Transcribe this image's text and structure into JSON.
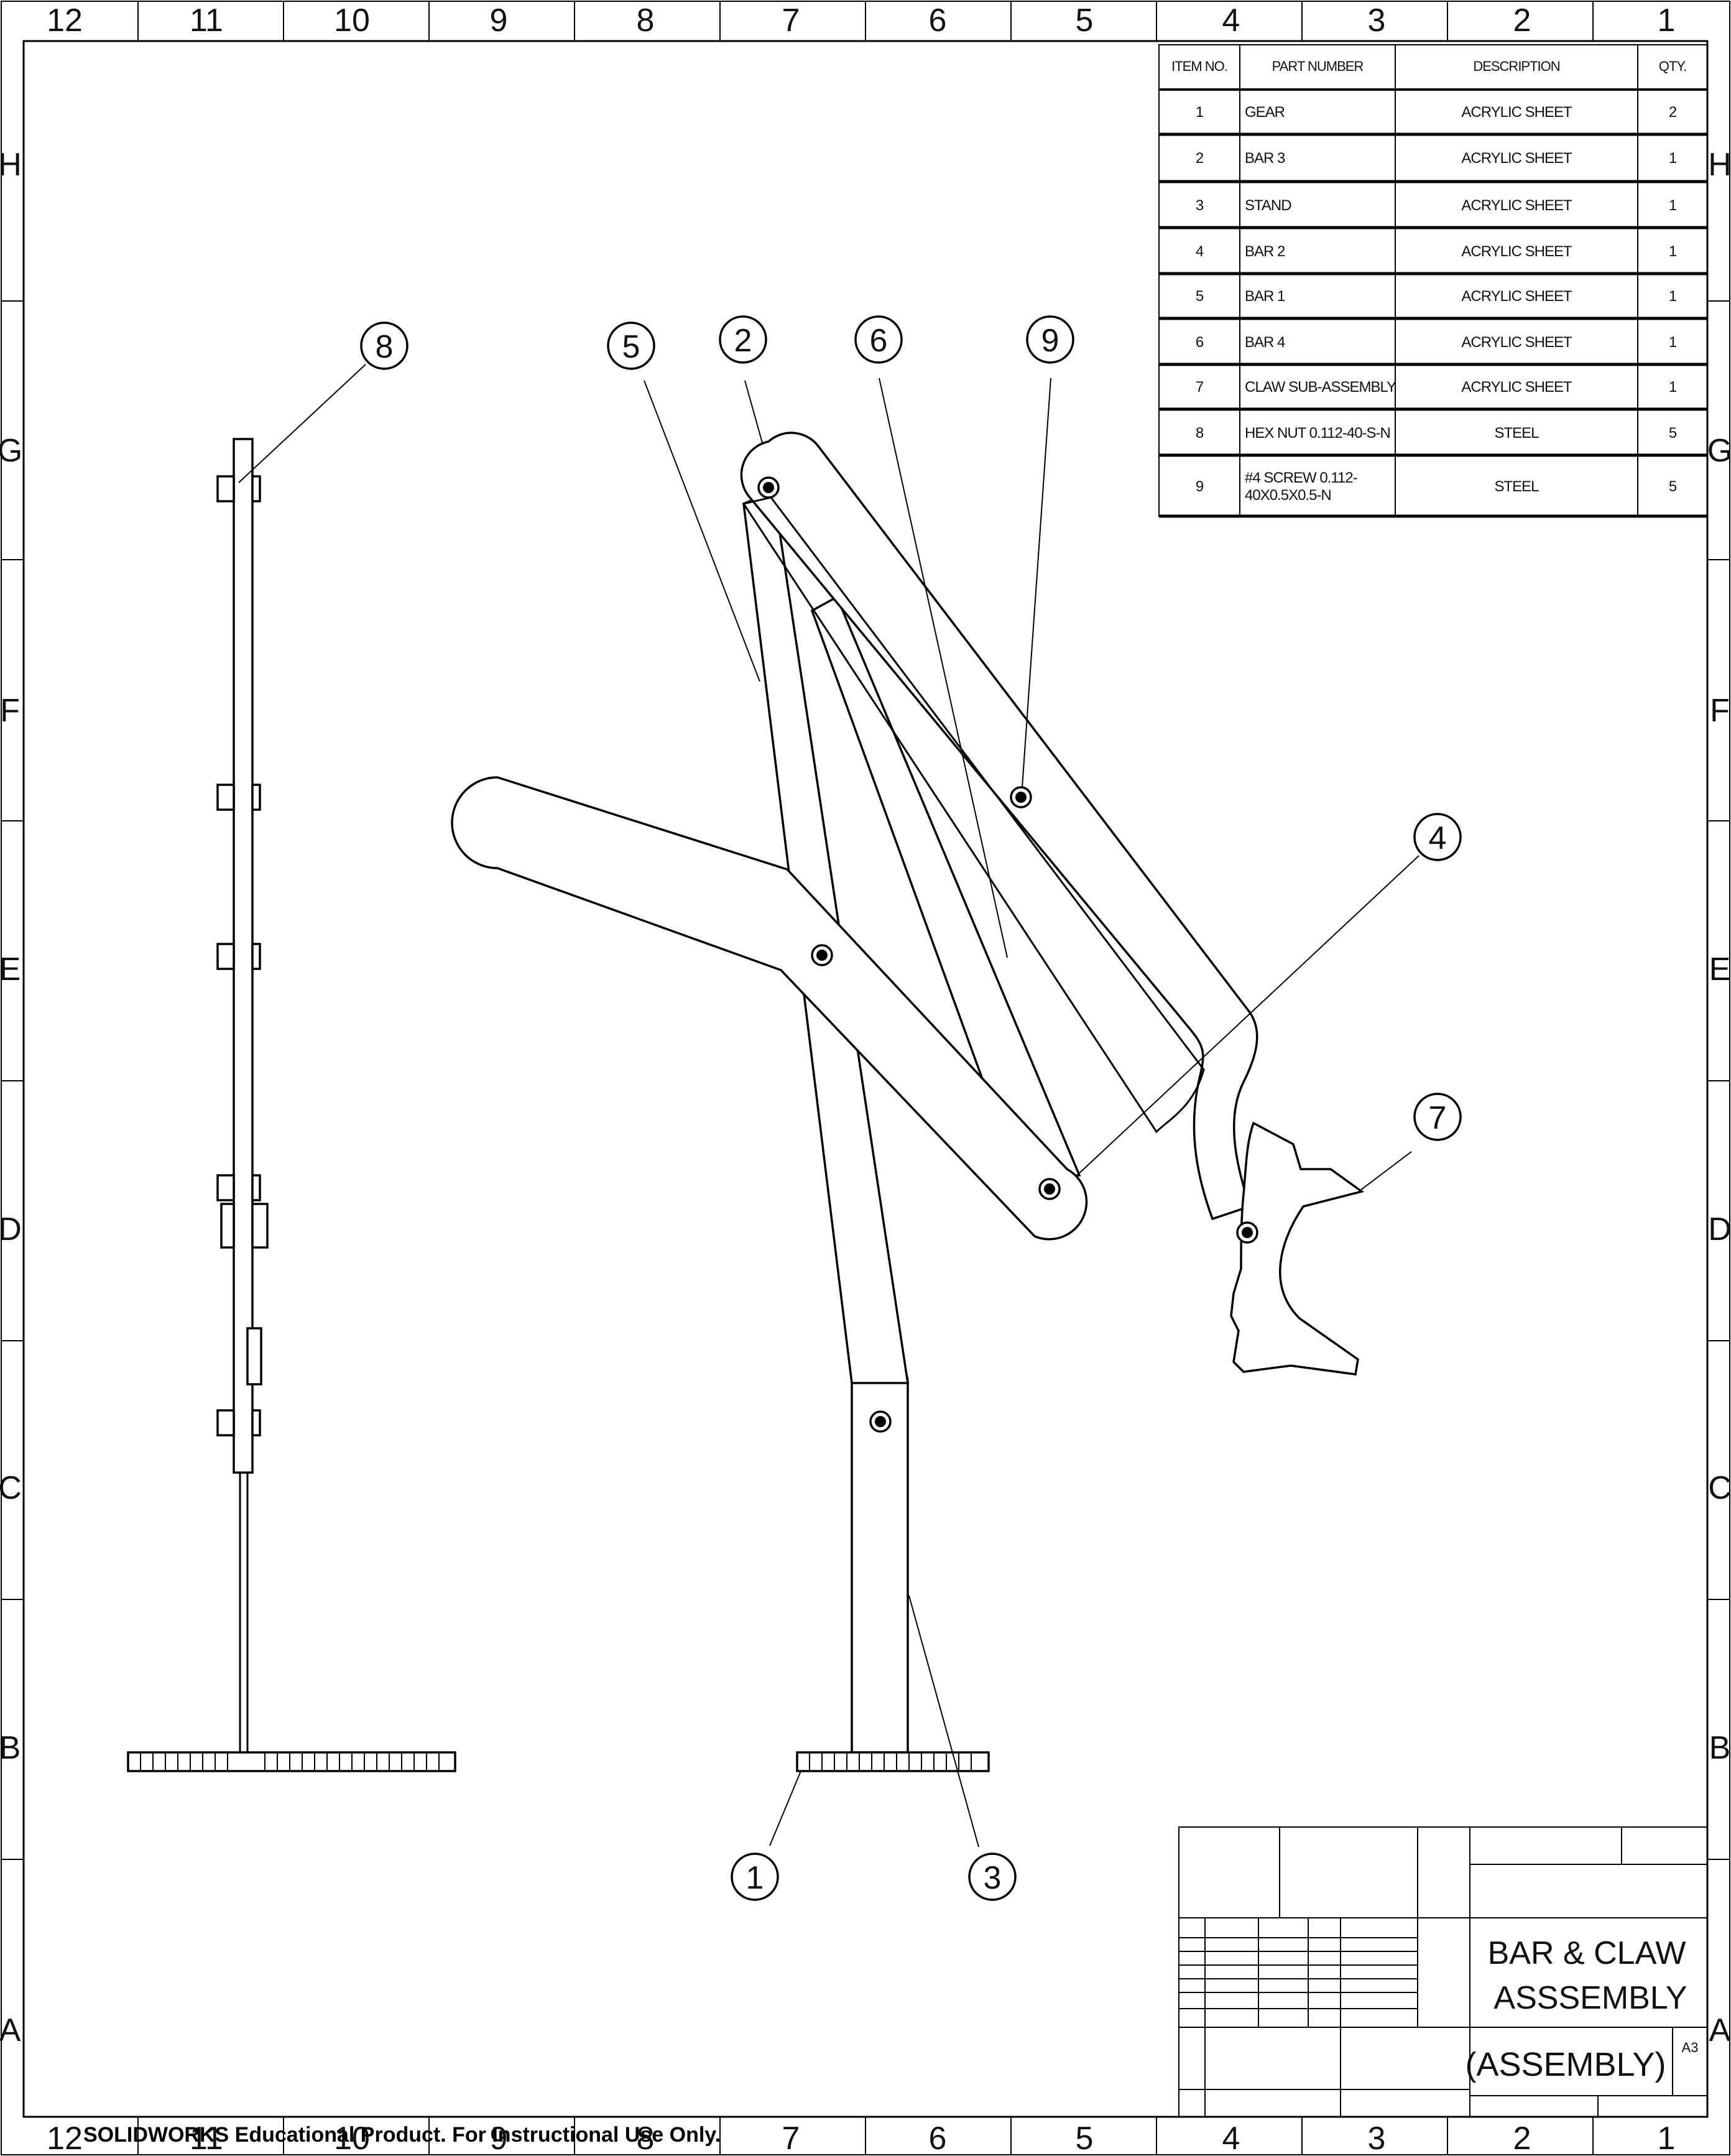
{
  "zones": {
    "columns": [
      "12",
      "11",
      "10",
      "9",
      "8",
      "7",
      "6",
      "5",
      "4",
      "3",
      "2",
      "1"
    ],
    "rows": [
      "H",
      "G",
      "F",
      "E",
      "D",
      "C",
      "B",
      "A"
    ]
  },
  "bom": {
    "headers": {
      "item_no": "ITEM NO.",
      "part_number": "PART NUMBER",
      "description": "DESCRIPTION",
      "qty": "QTY."
    },
    "rows": [
      {
        "item": "1",
        "part": "GEAR",
        "desc": "ACRYLIC SHEET",
        "qty": "2"
      },
      {
        "item": "2",
        "part": "BAR 3",
        "desc": "ACRYLIC SHEET",
        "qty": "1"
      },
      {
        "item": "3",
        "part": "STAND",
        "desc": "ACRYLIC SHEET",
        "qty": "1"
      },
      {
        "item": "4",
        "part": "BAR 2",
        "desc": "ACRYLIC SHEET",
        "qty": "1"
      },
      {
        "item": "5",
        "part": "BAR 1",
        "desc": "ACRYLIC SHEET",
        "qty": "1"
      },
      {
        "item": "6",
        "part": "BAR 4",
        "desc": "ACRYLIC SHEET",
        "qty": "1"
      },
      {
        "item": "7",
        "part": "CLAW SUB-ASSEMBLY",
        "desc": "ACRYLIC SHEET",
        "qty": "1"
      },
      {
        "item": "8",
        "part": "HEX NUT 0.112-40-S-N",
        "desc": "STEEL",
        "qty": "5"
      },
      {
        "item": "9",
        "part": "#4 SCREW 0.112-40X0.5X0.5-N",
        "part_line1": "#4 SCREW 0.112-",
        "part_line2": "40X0.5X0.5-N",
        "desc": "STEEL",
        "qty": "5"
      }
    ]
  },
  "balloons": [
    {
      "label": "8"
    },
    {
      "label": "5"
    },
    {
      "label": "2"
    },
    {
      "label": "6"
    },
    {
      "label": "9"
    },
    {
      "label": "4"
    },
    {
      "label": "7"
    },
    {
      "label": "1"
    },
    {
      "label": "3"
    }
  ],
  "title_block": {
    "title_line1": "BAR & CLAW",
    "title_line2": "ASSSEMBLY",
    "dwg_no": "(ASSEMBLY)",
    "size": "A3"
  },
  "watermark": "SOLIDWORKS Educational Product. For Instructional Use Only."
}
